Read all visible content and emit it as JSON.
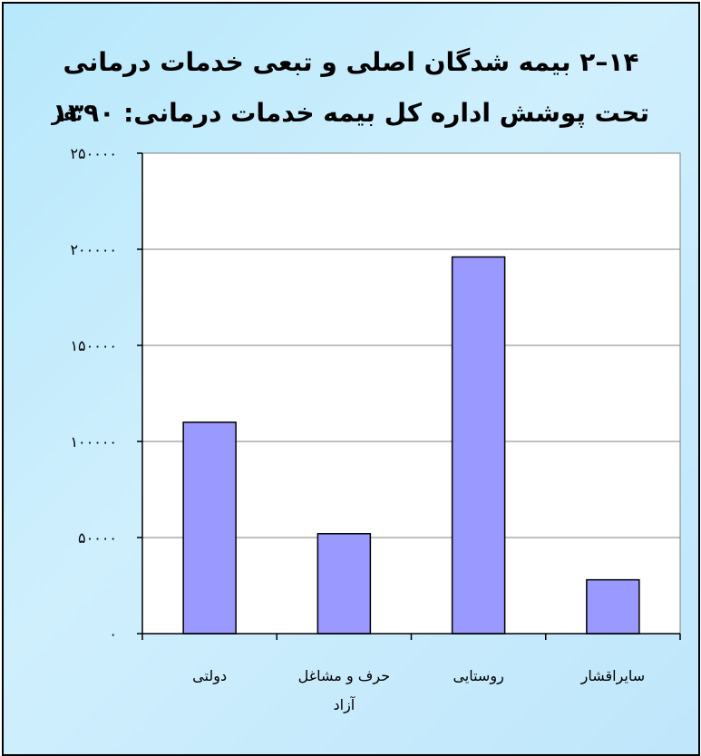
{
  "chart_data": {
    "type": "bar",
    "title_line1": "۱۴–۲ بیمه شدگان اصلی و تبعی خدمات درمانی",
    "title_line2": "تحت پوشش اداره کل بیمه خدمات درمانی: ۱۳۹۰",
    "unit_label": "نفر",
    "categories": [
      [
        "دولتی"
      ],
      [
        "حرف و مشاغل",
        "آزاد"
      ],
      [
        "روستایی"
      ],
      [
        "سایراقشار"
      ]
    ],
    "values": [
      110000,
      52000,
      196000,
      28000
    ],
    "ylim": [
      0,
      250000
    ],
    "yticks": [
      0,
      50000,
      100000,
      150000,
      200000,
      250000
    ],
    "ytick_labels": [
      "۰",
      "۵۰۰۰۰",
      "۱۰۰۰۰۰",
      "۱۵۰۰۰۰",
      "۲۰۰۰۰۰",
      "۲۵۰۰۰۰"
    ],
    "grid": true,
    "colors": {
      "bar": "#9999ff",
      "plot_bg": "#ffffff",
      "grid": "#808080",
      "frame_bg": "#c4ebfc"
    }
  }
}
